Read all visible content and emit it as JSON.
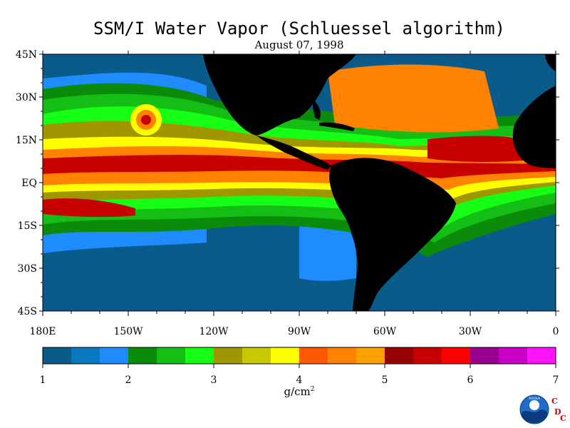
{
  "title": "SSM/I Water Vapor (Schluessel algorithm)",
  "date": "August 07, 1998",
  "lat_labels": [
    "45N",
    "30N",
    "15N",
    "EQ",
    "15S",
    "30S",
    "45S"
  ],
  "lon_labels": [
    "180E",
    "150W",
    "120W",
    "90W",
    "60W",
    "30W",
    "0"
  ],
  "colorbar": {
    "colors": [
      "#0a5a8a",
      "#0a78be",
      "#1e8cff",
      "#0a8c0a",
      "#14be14",
      "#14ff14",
      "#a09600",
      "#c8c800",
      "#ffff00",
      "#ff5a00",
      "#ff8200",
      "#ffa000",
      "#960000",
      "#c80000",
      "#ff0000",
      "#96008c",
      "#c800c8",
      "#ff14ff"
    ],
    "tick_labels": [
      "1",
      "2",
      "3",
      "4",
      "5",
      "6",
      "7"
    ]
  },
  "unit": {
    "base": "g/cm",
    "exp": "2"
  },
  "logo": {
    "badge": "NOAA",
    "letters": [
      "C",
      "D",
      "C"
    ]
  }
}
